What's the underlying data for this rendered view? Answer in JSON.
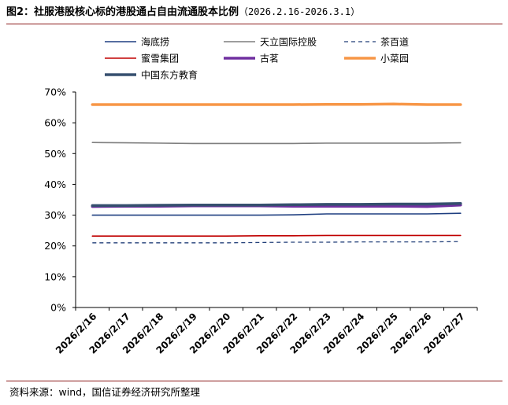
{
  "title": {
    "main": "图2：社服港股核心标的港股通占自由流通股本比例",
    "range": "（2026.2.16-2026.3.1）"
  },
  "source": "资料来源：wind，国信证券经济研究所整理",
  "chart_data": {
    "type": "line",
    "x": [
      "2026/2/16",
      "2026/2/17",
      "2026/2/18",
      "2026/2/19",
      "2026/2/20",
      "2026/2/21",
      "2026/2/22",
      "2026/2/23",
      "2026/2/24",
      "2026/2/25",
      "2026/2/26",
      "2026/2/27"
    ],
    "ylim": [
      0,
      70
    ],
    "yticks": [
      0,
      10,
      20,
      30,
      40,
      50,
      60,
      70
    ],
    "ytick_labels": [
      "0%",
      "10%",
      "20%",
      "30%",
      "40%",
      "50%",
      "60%",
      "70%"
    ],
    "grid": false,
    "legend_position": "top",
    "series": [
      {
        "name": "海底捞",
        "color": "#1f3f80",
        "dash": "solid",
        "width": 1.6,
        "values": [
          30.0,
          30.0,
          30.0,
          30.0,
          30.0,
          30.0,
          30.1,
          30.4,
          30.4,
          30.4,
          30.4,
          30.6
        ]
      },
      {
        "name": "天立国际控股",
        "color": "#7f7f7f",
        "dash": "solid",
        "width": 1.6,
        "values": [
          53.6,
          53.5,
          53.4,
          53.3,
          53.3,
          53.3,
          53.3,
          53.4,
          53.4,
          53.4,
          53.4,
          53.5
        ]
      },
      {
        "name": "茶百道",
        "color": "#203e78",
        "dash": "dashed",
        "width": 1.3,
        "values": [
          21.0,
          21.0,
          21.0,
          21.0,
          21.0,
          21.1,
          21.2,
          21.2,
          21.3,
          21.3,
          21.3,
          21.4
        ]
      },
      {
        "name": "蜜雪集团",
        "color": "#c00000",
        "dash": "solid",
        "width": 1.6,
        "values": [
          23.2,
          23.2,
          23.2,
          23.2,
          23.2,
          23.3,
          23.3,
          23.4,
          23.4,
          23.4,
          23.4,
          23.4
        ]
      },
      {
        "name": "古茗",
        "color": "#7030a0",
        "dash": "solid",
        "width": 3.5,
        "values": [
          32.8,
          32.9,
          32.9,
          33.0,
          33.0,
          33.0,
          32.9,
          32.9,
          32.9,
          32.9,
          32.8,
          33.3
        ]
      },
      {
        "name": "小菜园",
        "color": "#f79646",
        "dash": "solid",
        "width": 3.5,
        "values": [
          65.9,
          65.9,
          65.9,
          65.9,
          65.9,
          65.9,
          65.9,
          66.0,
          66.0,
          66.1,
          65.9,
          65.9
        ]
      },
      {
        "name": "中国东方教育",
        "color": "#354f6e",
        "dash": "solid",
        "width": 3.5,
        "values": [
          33.1,
          33.1,
          33.2,
          33.3,
          33.3,
          33.3,
          33.4,
          33.5,
          33.5,
          33.6,
          33.6,
          33.8
        ]
      }
    ]
  }
}
